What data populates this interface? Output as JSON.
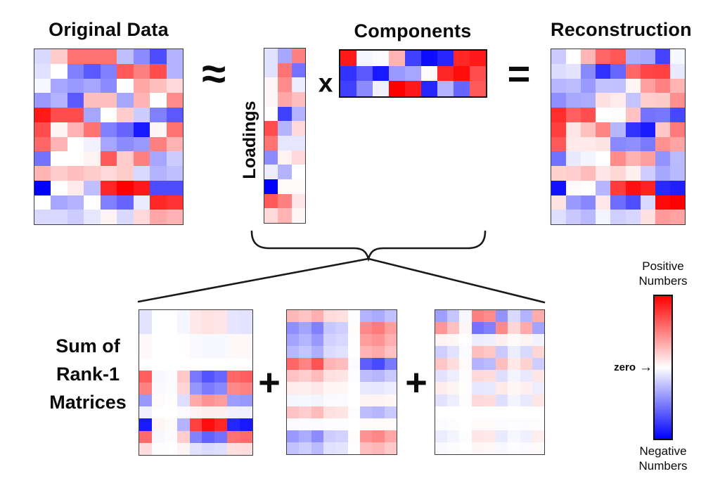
{
  "titles": {
    "original": "Original Data",
    "components": "Components",
    "reconstruction": "Reconstruction",
    "loadings": "Loadings"
  },
  "operators": {
    "approx": "≈",
    "multiply": "x",
    "equals": "=",
    "plus": "+"
  },
  "sum_label_lines": [
    "Sum of",
    "Rank-1",
    "Matrices"
  ],
  "colorbar": {
    "positive_lines": [
      "Positive",
      "Numbers"
    ],
    "negative_lines": [
      "Negative",
      "Numbers"
    ],
    "zero_label": "zero",
    "arrow": "→",
    "positive_color": "#ff0000",
    "zero_color": "#ffffff",
    "negative_color": "#0000ff"
  },
  "matrices": {
    "original": [
      [
        -0.15,
        0.2,
        0.55,
        0.55,
        0.55,
        -0.25,
        -0.45,
        -0.7,
        -0.3
      ],
      [
        -0.12,
        0.0,
        -0.5,
        -0.65,
        -0.5,
        0.65,
        0.5,
        0.7,
        -0.3
      ],
      [
        -0.03,
        -0.35,
        -0.4,
        -0.35,
        -0.45,
        0.0,
        0.35,
        0.25,
        0.15
      ],
      [
        -0.4,
        -0.3,
        -0.65,
        0.25,
        0.25,
        -0.35,
        0.3,
        0.0,
        0.45
      ],
      [
        0.9,
        0.7,
        0.7,
        -0.35,
        0.0,
        0.2,
        -0.2,
        -0.5,
        -0.65
      ],
      [
        0.7,
        0.05,
        0.3,
        0.55,
        -0.5,
        -0.6,
        -0.9,
        0.03,
        0.55
      ],
      [
        0.6,
        0.3,
        0.0,
        -0.05,
        -0.35,
        -0.45,
        -0.4,
        0.5,
        0.3
      ],
      [
        -0.55,
        0.0,
        0.0,
        0.05,
        0.65,
        0.2,
        0.5,
        -0.35,
        -0.2
      ],
      [
        0.3,
        0.2,
        0.25,
        0.2,
        0.15,
        0.2,
        -0.15,
        -0.3,
        -0.25
      ],
      [
        -1.0,
        0.0,
        0.08,
        -0.25,
        0.85,
        1.0,
        0.9,
        -0.7,
        -0.7
      ],
      [
        0.0,
        -0.35,
        -0.3,
        0.0,
        -0.5,
        -0.6,
        -0.08,
        0.85,
        0.8
      ],
      [
        -0.15,
        -0.15,
        -0.2,
        -0.1,
        0.05,
        -0.15,
        0.15,
        0.35,
        0.3
      ]
    ],
    "loadings": [
      [
        -0.12,
        -0.35,
        0.5
      ],
      [
        -0.12,
        0.55,
        -0.55
      ],
      [
        0.03,
        0.45,
        -0.07
      ],
      [
        0.03,
        0.35,
        0.25
      ],
      [
        0.0,
        -0.75,
        -0.3
      ],
      [
        0.7,
        -0.3,
        0.15
      ],
      [
        0.55,
        -0.1,
        -0.1
      ],
      [
        -0.45,
        0.05,
        0.15
      ],
      [
        -0.07,
        -0.3,
        0.0
      ],
      [
        -1.0,
        0.02,
        0.02
      ],
      [
        0.65,
        0.5,
        0.1
      ],
      [
        0.15,
        0.3,
        0.03
      ]
    ],
    "components": [
      [
        0.9,
        -0.04,
        -0.02,
        0.3,
        -0.75,
        -0.95,
        -0.85,
        0.85,
        0.9
      ],
      [
        -0.8,
        -0.65,
        -0.9,
        -0.4,
        -0.35,
        0.02,
        0.85,
        0.95,
        0.7
      ],
      [
        -0.75,
        -0.45,
        -0.06,
        1.0,
        0.9,
        -0.85,
        -0.3,
        -0.6,
        0.65
      ]
    ]
  }
}
